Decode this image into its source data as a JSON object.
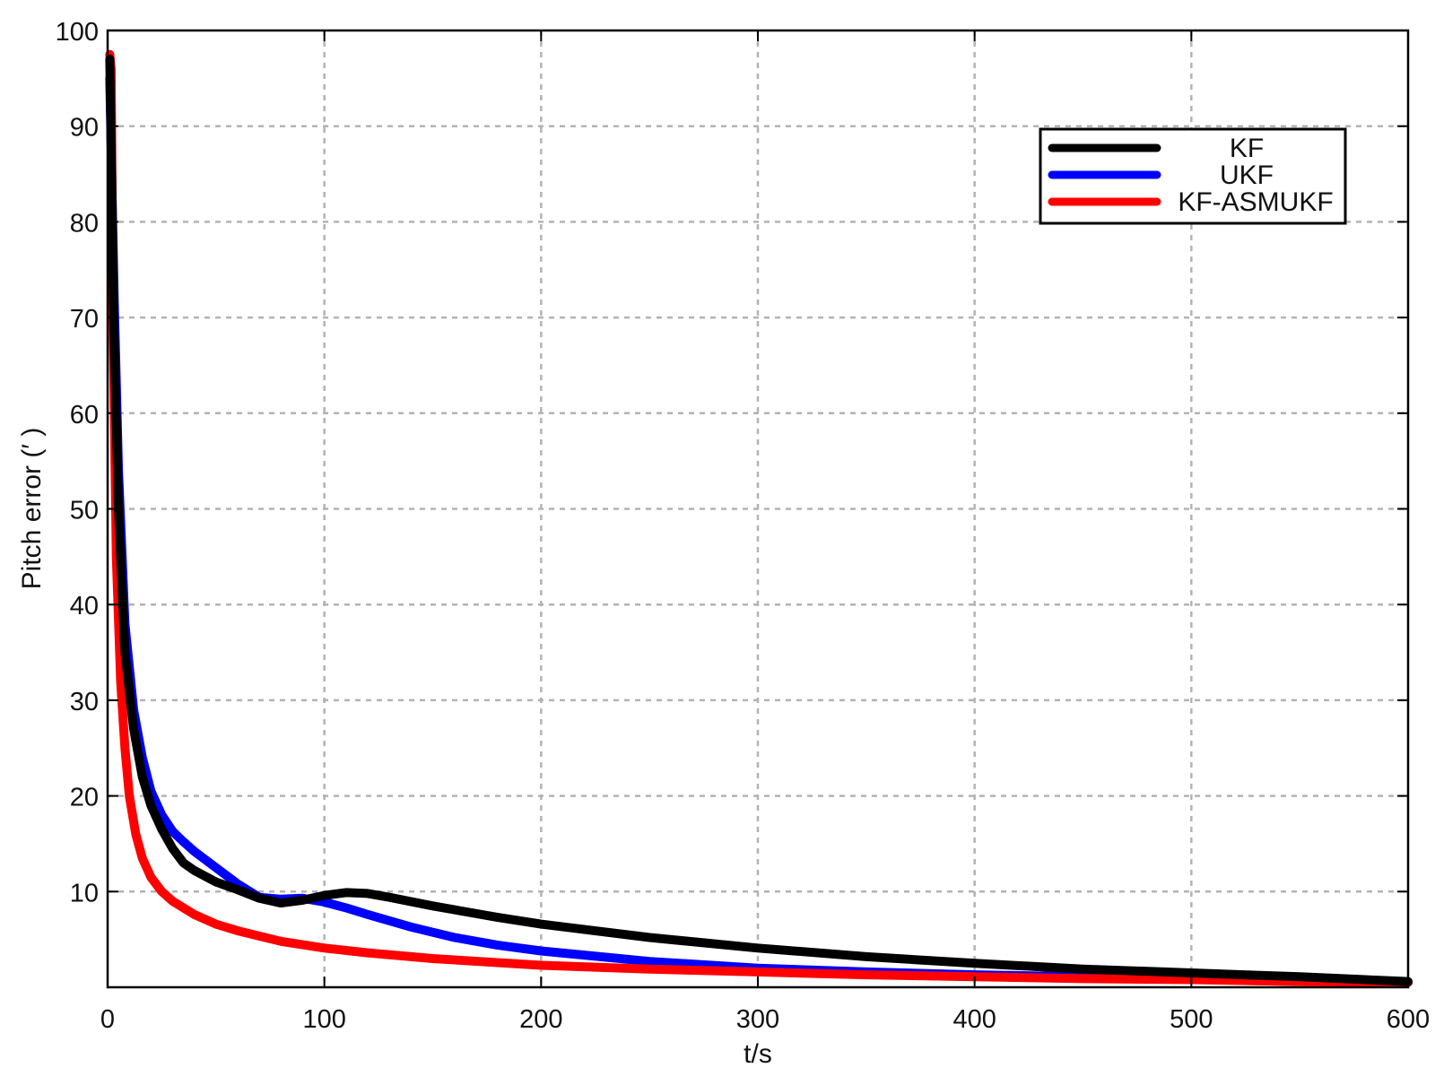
{
  "chart_data": {
    "type": "line",
    "xlabel": "t/s",
    "ylabel": "Pitch error (′ )",
    "xlim": [
      0,
      600
    ],
    "ylim": [
      0,
      100
    ],
    "x_ticks": [
      "0",
      "100",
      "200",
      "300",
      "400",
      "500",
      "600"
    ],
    "y_ticks": [
      "10",
      "20",
      "30",
      "40",
      "50",
      "60",
      "70",
      "80",
      "90",
      "100"
    ],
    "grid": true,
    "legend_position": "top-right",
    "series": [
      {
        "name": "KF",
        "color": "#000000",
        "x": [
          1,
          3,
          5,
          8,
          12,
          16,
          20,
          25,
          30,
          35,
          40,
          50,
          60,
          70,
          80,
          90,
          100,
          110,
          120,
          130,
          150,
          180,
          200,
          250,
          300,
          350,
          400,
          450,
          500,
          550,
          600
        ],
        "y": [
          97,
          68,
          50,
          35,
          27,
          22,
          19,
          16.5,
          14.5,
          13,
          12.2,
          11,
          10.2,
          9.3,
          8.8,
          9.1,
          9.6,
          9.9,
          9.8,
          9.4,
          8.5,
          7.3,
          6.6,
          5.2,
          4.1,
          3.2,
          2.5,
          1.9,
          1.5,
          1.1,
          0.6
        ]
      },
      {
        "name": "UKF",
        "color": "#0000ff",
        "x": [
          1,
          3,
          5,
          8,
          12,
          16,
          20,
          25,
          30,
          35,
          40,
          50,
          60,
          70,
          80,
          90,
          100,
          110,
          120,
          140,
          160,
          180,
          200,
          250,
          300,
          350,
          400,
          450,
          500,
          550,
          600
        ],
        "y": [
          95,
          72,
          54,
          38,
          29,
          24,
          20.5,
          18,
          16.3,
          15.2,
          14.2,
          12.5,
          10.8,
          9.4,
          9.2,
          9.3,
          8.9,
          8.3,
          7.6,
          6.3,
          5.2,
          4.4,
          3.8,
          2.7,
          2.0,
          1.6,
          1.3,
          1.1,
          0.9,
          0.7,
          0.5
        ]
      },
      {
        "name": "KF-ASMUKF",
        "color": "#ff0000",
        "x": [
          1,
          1.6,
          2.5,
          4,
          6,
          8,
          10,
          13,
          16,
          20,
          25,
          30,
          40,
          50,
          60,
          80,
          100,
          120,
          150,
          200,
          250,
          300,
          350,
          400,
          450,
          500,
          550,
          600
        ],
        "y": [
          97.5,
          96,
          70,
          45,
          32,
          25,
          20,
          16,
          13.5,
          11.5,
          10,
          9,
          7.6,
          6.6,
          5.9,
          4.8,
          4.1,
          3.6,
          3.0,
          2.3,
          1.9,
          1.6,
          1.3,
          1.1,
          0.9,
          0.8,
          0.6,
          0.5
        ]
      }
    ]
  }
}
